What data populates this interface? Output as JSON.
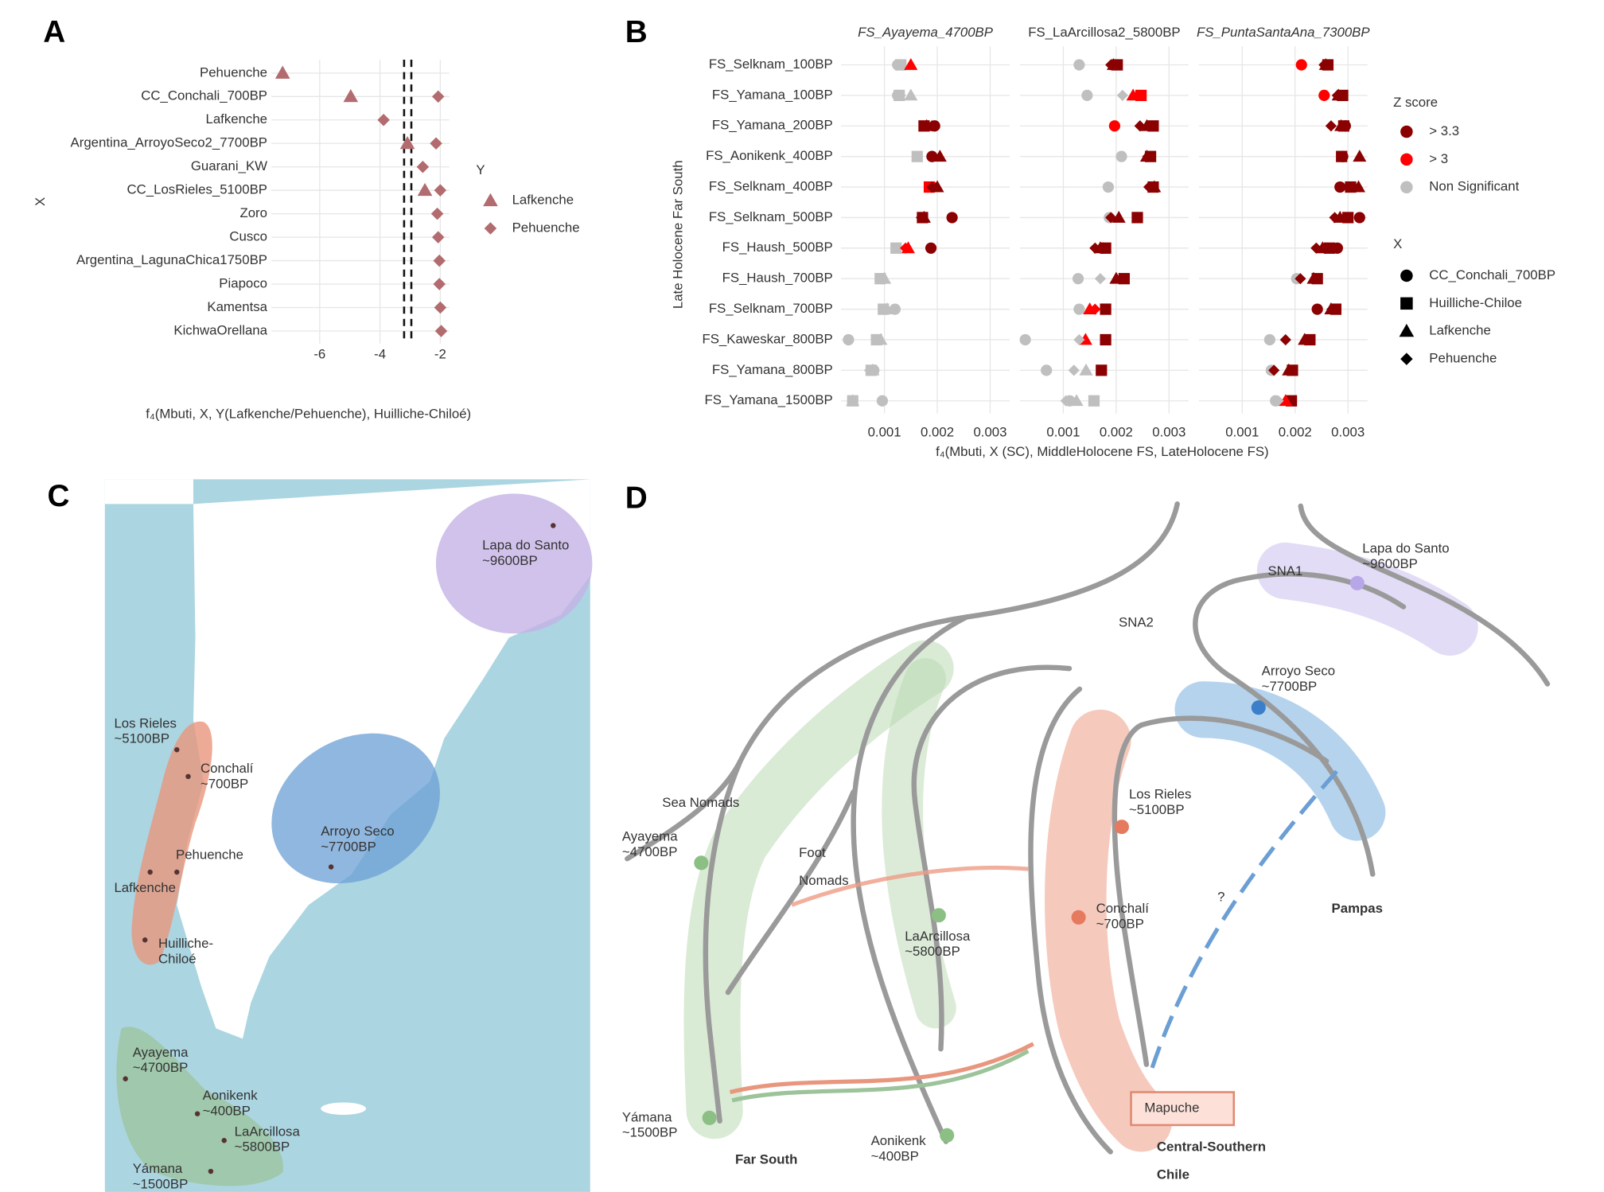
{
  "panel_labels": [
    "A",
    "B",
    "C",
    "D"
  ],
  "chart_data": [
    {
      "type": "dot",
      "x_label": "f₄(Mbuti, X, Y(Lafkenche/Pehuenche), Huilliche-Chiloé)",
      "y_label": "X",
      "legend_title": "Y",
      "categories": [
        "Pehuenche",
        "CC_Conchali_700BP",
        "Lafkenche",
        "Argentina_ArroyoSeco2_7700BP",
        "Guarani_KW",
        "CC_LosRieles_5100BP",
        "Zoro",
        "Cusco",
        "Argentina_LagunaChica1750BP",
        "Piapoco",
        "Kamentsa",
        "KichwaOrellana"
      ],
      "series": [
        {
          "name": "Lafkenche",
          "shape": "triangle",
          "color": "#b26b6e",
          "values": [
            -7.23,
            -4.97,
            null,
            -3.09,
            null,
            -2.51,
            null,
            null,
            null,
            null,
            null,
            null
          ]
        },
        {
          "name": "Pehuenche",
          "shape": "diamond",
          "color": "#b26b6e",
          "values": [
            null,
            -2.07,
            -3.88,
            -2.14,
            -2.58,
            -2.0,
            -2.1,
            -2.07,
            -2.03,
            -2.03,
            -2.0,
            -1.97
          ]
        }
      ],
      "reference_lines": [
        -3.2,
        -2.96
      ],
      "xlim": [
        -7.6,
        -1.7
      ],
      "xticks": [
        -6,
        -4,
        -2
      ],
      "grid": true
    },
    {
      "type": "facets",
      "x_label": "f₄(Mbuti, X (SC), MiddleHolocene FS, LateHolocene FS)",
      "y_label": "Late Holocene Far South",
      "categories": [
        "FS_Selknam_100BP",
        "FS_Yamana_100BP",
        "FS_Yamana_200BP",
        "FS_Aonikenk_400BP",
        "FS_Selknam_400BP",
        "FS_Selknam_500BP",
        "FS_Haush_500BP",
        "FS_Haush_700BP",
        "FS_Selknam_700BP",
        "FS_Kaweskar_800BP",
        "FS_Yamana_800BP",
        "FS_Yamana_1500BP"
      ],
      "xlim": [
        0.00018,
        0.00337
      ],
      "xticks": [
        0.001,
        0.002,
        0.003
      ],
      "grid": true,
      "shape_legend_title": "X",
      "shape_legend_color": "#000000",
      "shapes": [
        {
          "name": "CC_Conchali_700BP",
          "shape": "circle"
        },
        {
          "name": "Huilliche-Chiloe",
          "shape": "square"
        },
        {
          "name": "Lafkenche",
          "shape": "triangle"
        },
        {
          "name": "Pehuenche",
          "shape": "diamond"
        }
      ],
      "color_legend": {
        "title": "Z score",
        "items": [
          {
            "label": "> 3.3",
            "color": "#8b0000"
          },
          {
            "label": "> 3",
            "color": "#ff0000"
          },
          {
            "label": "Non Significant",
            "color": "#bfbfbf"
          }
        ]
      },
      "facets": [
        {
          "title": "FS_Ayayema_4700BP",
          "values": [
            [
              0.00125,
              0.00125,
              0.00195,
              0.0019,
              0.0019,
              0.00228,
              0.00188,
              0.00095,
              0.0012,
              0.00032,
              0.0008,
              0.00096
            ],
            [
              0.00131,
              0.00128,
              0.00175,
              0.00162,
              0.00185,
              0.00172,
              0.00122,
              0.00092,
              0.00098,
              0.00085,
              0.00075,
              0.0004
            ],
            [
              0.0015,
              0.0015,
              0.0018,
              0.00205,
              0.002,
              0.00175,
              0.00145,
              0.001,
              0.00105,
              0.00093,
              0.00078,
              0.0004
            ],
            [
              0.0013,
              0.0013,
              0.0019,
              0.0019,
              0.0019,
              0.0017,
              0.0014,
              0.00093,
              0.001,
              0.00085,
              0.00072,
              0.0004
            ]
          ],
          "colors": [
            [
              "#bfbfbf",
              "#bfbfbf",
              "#8b0000",
              "#8b0000",
              "#8b0000",
              "#8b0000",
              "#8b0000",
              "#bfbfbf",
              "#bfbfbf",
              "#bfbfbf",
              "#bfbfbf",
              "#bfbfbf"
            ],
            [
              "#bfbfbf",
              "#bfbfbf",
              "#8b0000",
              "#bfbfbf",
              "#ff0000",
              "#8b0000",
              "#bfbfbf",
              "#bfbfbf",
              "#bfbfbf",
              "#bfbfbf",
              "#bfbfbf",
              "#bfbfbf"
            ],
            [
              "#ff0000",
              "#bfbfbf",
              "#8b0000",
              "#8b0000",
              "#8b0000",
              "#8b0000",
              "#ff0000",
              "#bfbfbf",
              "#bfbfbf",
              "#bfbfbf",
              "#bfbfbf",
              "#bfbfbf"
            ],
            [
              "#bfbfbf",
              "#bfbfbf",
              "#8b0000",
              "#8b0000",
              "#8b0000",
              "#8b0000",
              "#ff0000",
              "#bfbfbf",
              "#bfbfbf",
              "#bfbfbf",
              "#bfbfbf",
              "#bfbfbf"
            ]
          ]
        },
        {
          "title": "FS_LaArcillosa2_5800BP",
          "values": [
            [
              0.0013,
              0.00145,
              0.00197,
              0.0021,
              0.00185,
              0.00187,
              0.00175,
              0.00128,
              0.0013,
              0.00028,
              0.00068,
              0.00112
            ],
            [
              0.00202,
              0.00247,
              0.0027,
              0.00265,
              0.0027,
              0.0024,
              0.0018,
              0.00215,
              0.0018,
              0.0018,
              0.00172,
              0.00158
            ],
            [
              0.00195,
              0.00232,
              0.00258,
              0.00258,
              0.00272,
              0.00205,
              0.0017,
              0.002,
              0.0015,
              0.00142,
              0.00143,
              0.00125
            ],
            [
              0.0019,
              0.00212,
              0.00245,
              0.0026,
              0.00262,
              0.0019,
              0.0016,
              0.0017,
              0.0016,
              0.0013,
              0.0012,
              0.00105
            ]
          ],
          "colors": [
            [
              "#bfbfbf",
              "#bfbfbf",
              "#ff0000",
              "#bfbfbf",
              "#bfbfbf",
              "#bfbfbf",
              "#8b0000",
              "#bfbfbf",
              "#bfbfbf",
              "#bfbfbf",
              "#bfbfbf",
              "#bfbfbf"
            ],
            [
              "#8b0000",
              "#ff0000",
              "#8b0000",
              "#8b0000",
              "#8b0000",
              "#8b0000",
              "#8b0000",
              "#8b0000",
              "#8b0000",
              "#8b0000",
              "#8b0000",
              "#bfbfbf"
            ],
            [
              "#8b0000",
              "#ff0000",
              "#8b0000",
              "#8b0000",
              "#8b0000",
              "#8b0000",
              "#8b0000",
              "#8b0000",
              "#ff0000",
              "#ff0000",
              "#bfbfbf",
              "#bfbfbf"
            ],
            [
              "#8b0000",
              "#bfbfbf",
              "#8b0000",
              "#8b0000",
              "#8b0000",
              "#8b0000",
              "#8b0000",
              "#bfbfbf",
              "#ff0000",
              "#bfbfbf",
              "#bfbfbf",
              "#bfbfbf"
            ]
          ]
        },
        {
          "title": "FS_PuntaSantaAna_7300BP",
          "values": [
            [
              0.00212,
              0.00255,
              0.00295,
              0.0029,
              0.00285,
              0.00322,
              0.0028,
              0.00203,
              0.00242,
              0.00152,
              0.00155,
              0.00163
            ],
            [
              0.00262,
              0.0029,
              0.00292,
              0.00288,
              0.00305,
              0.003,
              0.00265,
              0.00242,
              0.00277,
              0.00228,
              0.00195,
              0.00193
            ],
            [
              0.00258,
              0.00282,
              0.00287,
              0.00322,
              0.0032,
              0.00285,
              0.00252,
              0.00235,
              0.00268,
              0.00218,
              0.00188,
              0.00182
            ],
            [
              0.00255,
              0.0028,
              0.00268,
              0.0029,
              0.0031,
              0.00275,
              0.0024,
              0.0021,
              0.0027,
              0.00182,
              0.0016,
              0.00168
            ]
          ],
          "colors": [
            [
              "#ff0000",
              "#ff0000",
              "#8b0000",
              "#8b0000",
              "#8b0000",
              "#8b0000",
              "#8b0000",
              "#bfbfbf",
              "#8b0000",
              "#bfbfbf",
              "#bfbfbf",
              "#bfbfbf"
            ],
            [
              "#8b0000",
              "#8b0000",
              "#8b0000",
              "#8b0000",
              "#8b0000",
              "#8b0000",
              "#8b0000",
              "#8b0000",
              "#8b0000",
              "#8b0000",
              "#8b0000",
              "#8b0000"
            ],
            [
              "#8b0000",
              "#8b0000",
              "#8b0000",
              "#8b0000",
              "#8b0000",
              "#8b0000",
              "#8b0000",
              "#8b0000",
              "#8b0000",
              "#8b0000",
              "#8b0000",
              "#ff0000"
            ],
            [
              "#8b0000",
              "#8b0000",
              "#8b0000",
              "#8b0000",
              "#8b0000",
              "#8b0000",
              "#8b0000",
              "#8b0000",
              "#8b0000",
              "#8b0000",
              "#8b0000",
              "#bfbfbf"
            ]
          ]
        }
      ]
    }
  ],
  "map": {
    "sites": [
      {
        "lines": [
          "Lapa do Santo",
          "~9600BP"
        ]
      },
      {
        "lines": [
          "Los Rieles",
          "~5100BP"
        ]
      },
      {
        "lines": [
          "Conchalí",
          "~700BP"
        ]
      },
      {
        "lines": [
          "Pehuenche"
        ]
      },
      {
        "lines": [
          "Lafkenche"
        ]
      },
      {
        "lines": [
          "Huilliche-",
          "Chiloé"
        ]
      },
      {
        "lines": [
          "Arroyo Seco",
          "~7700BP"
        ]
      },
      {
        "lines": [
          "Ayayema",
          "~4700BP"
        ]
      },
      {
        "lines": [
          "Aonikenk",
          "~400BP"
        ]
      },
      {
        "lines": [
          "LaArcillosa",
          "~5800BP"
        ]
      },
      {
        "lines": [
          "Yámana",
          "~1500BP"
        ]
      }
    ]
  },
  "diagram": {
    "groups": [
      {
        "lines": [
          "SNA1"
        ]
      },
      {
        "lines": [
          "SNA2"
        ]
      },
      {
        "lines": [
          "Sea Nomads"
        ]
      },
      {
        "lines": [
          "Foot",
          "Nomads"
        ]
      },
      {
        "lines": [
          "Pampas"
        ]
      },
      {
        "lines": [
          "Far South"
        ]
      },
      {
        "lines": [
          "Central-Southern",
          "Chile"
        ]
      },
      {
        "lines": [
          "Mapuche"
        ]
      },
      {
        "lines": [
          "?"
        ]
      }
    ],
    "sites": [
      {
        "lines": [
          "Lapa do Santo",
          "~9600BP"
        ]
      },
      {
        "lines": [
          "Arroyo Seco",
          "~7700BP"
        ]
      },
      {
        "lines": [
          "Los Rieles",
          "~5100BP"
        ]
      },
      {
        "lines": [
          "Conchalí",
          "~700BP"
        ]
      },
      {
        "lines": [
          "Ayayema",
          "~4700BP"
        ]
      },
      {
        "lines": [
          "LaArcillosa",
          "~5800BP"
        ]
      },
      {
        "lines": [
          "Yámana",
          "~1500BP"
        ]
      },
      {
        "lines": [
          "Aonikenk",
          "~400BP"
        ]
      }
    ]
  }
}
